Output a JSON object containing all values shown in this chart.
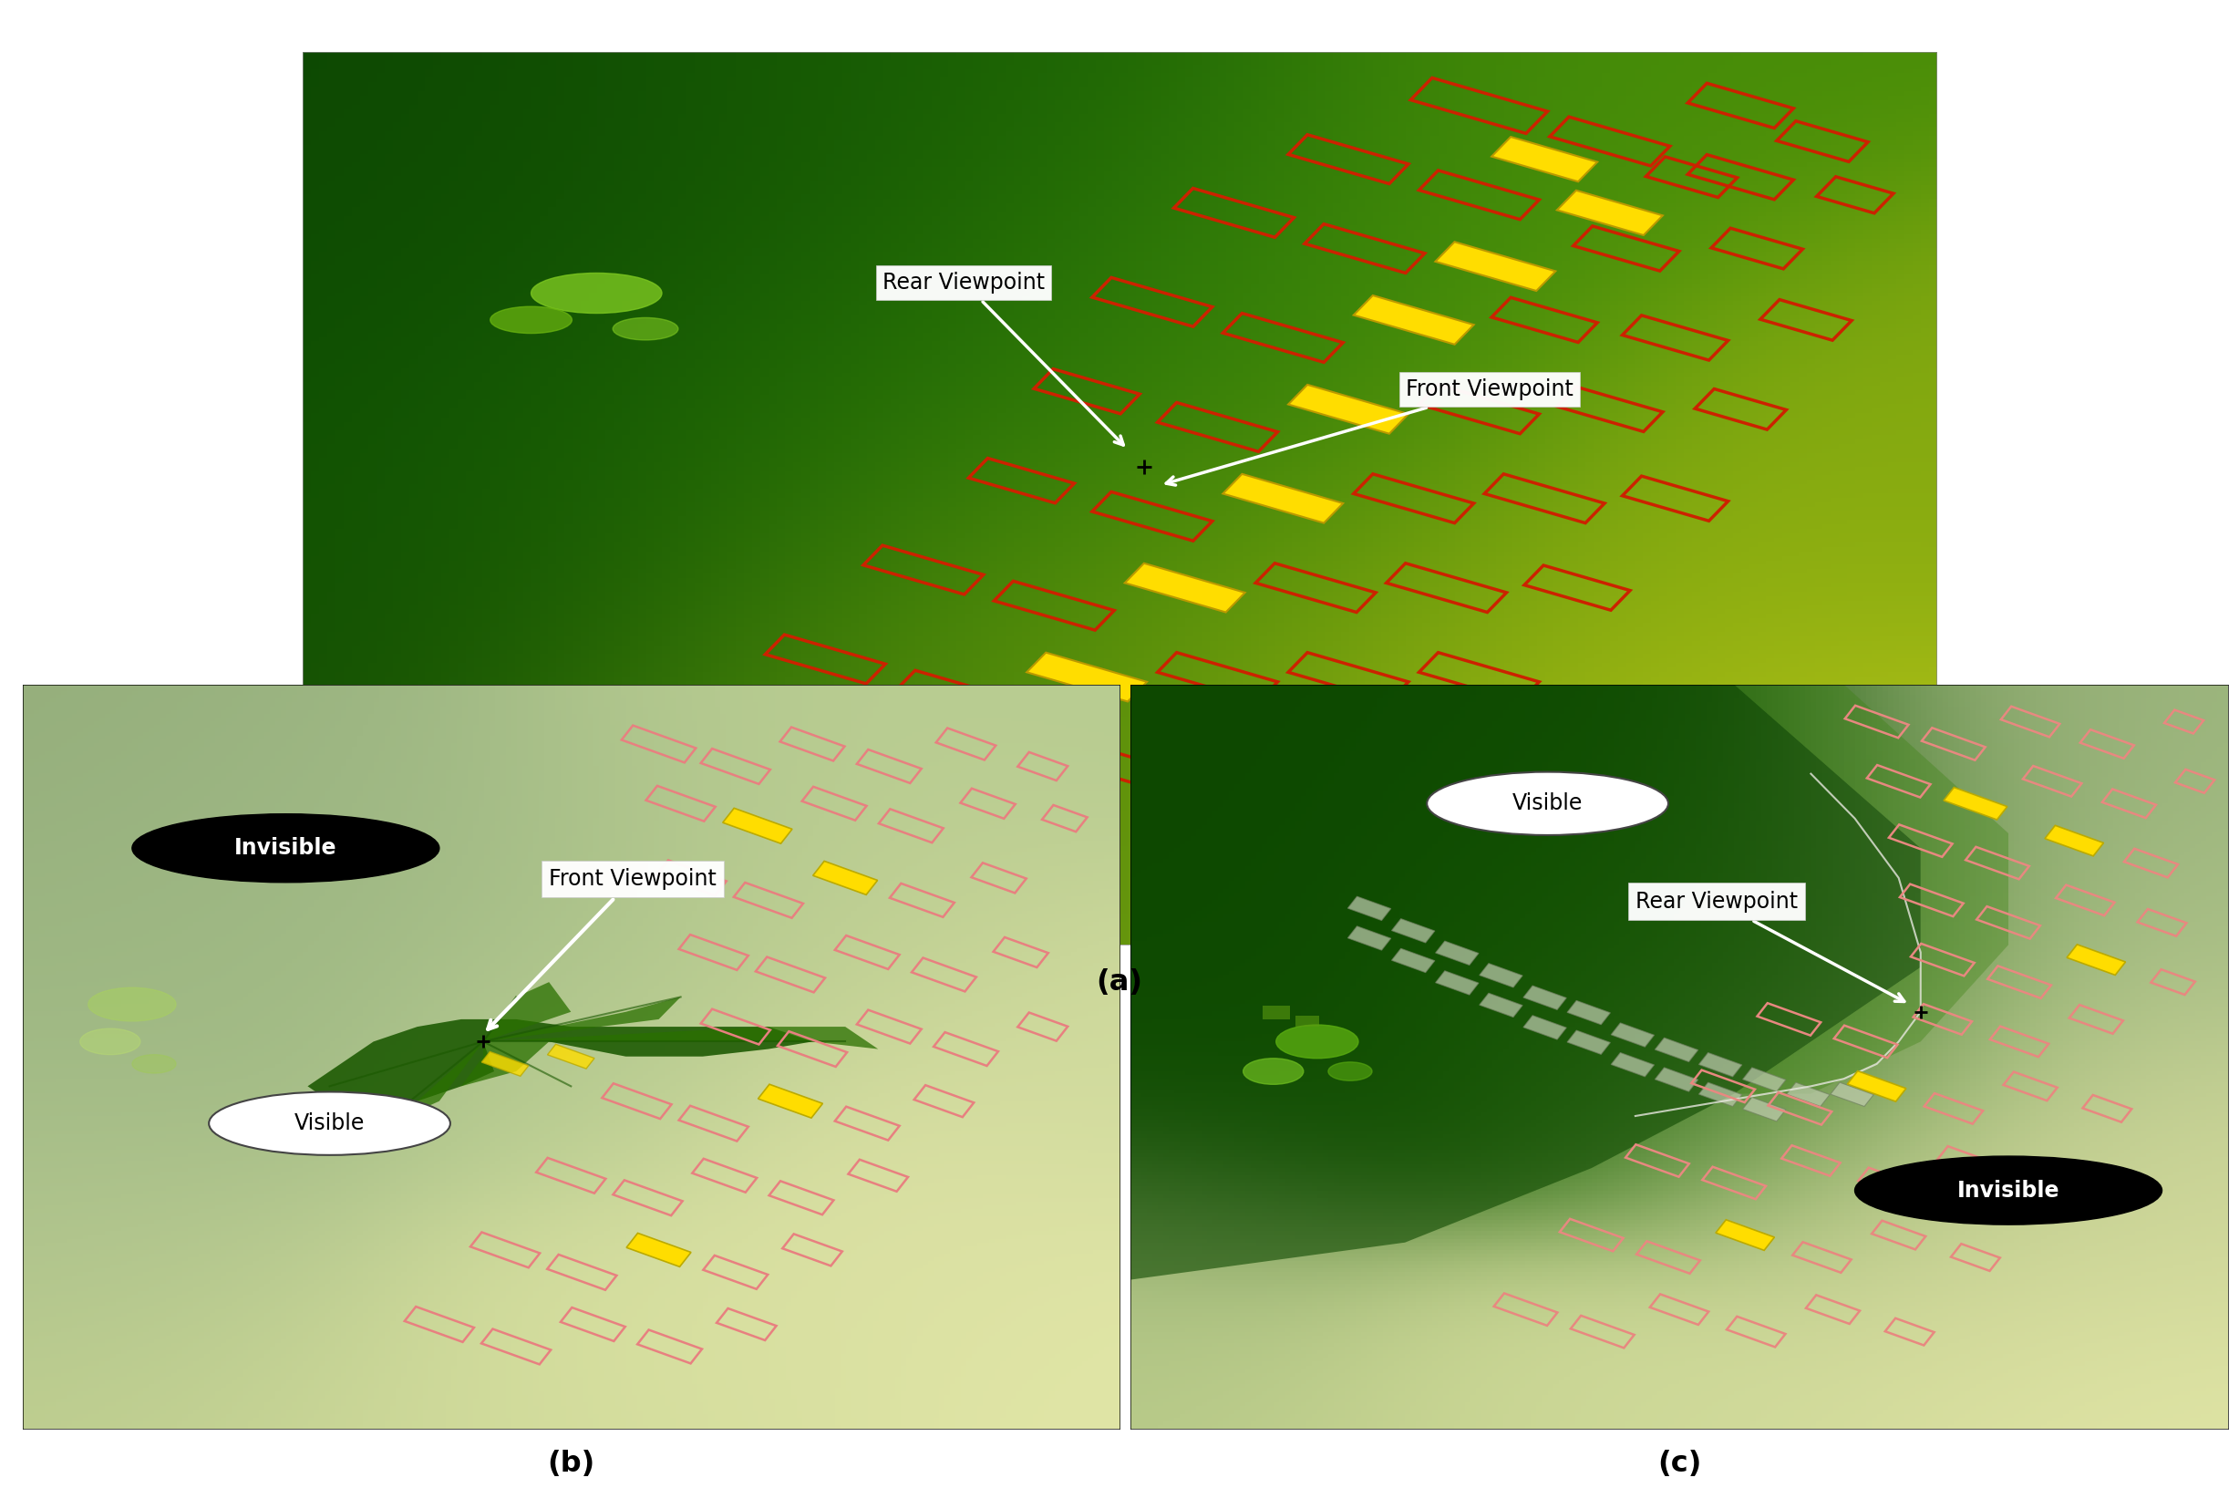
{
  "figure_width": 24.56,
  "figure_height": 16.32,
  "background_color": "#ffffff",
  "panel_a": {
    "label": "(a)",
    "rear_viewpoint_label": "Rear Viewpoint",
    "front_viewpoint_label": "Front Viewpoint"
  },
  "panel_b": {
    "label": "(b)",
    "invisible_label": "Invisible",
    "visible_label": "Visible",
    "front_viewpoint_label": "Front Viewpoint"
  },
  "panel_c": {
    "label": "(c)",
    "invisible_label": "Invisible",
    "visible_label": "Visible",
    "rear_viewpoint_label": "Rear Viewpoint"
  }
}
